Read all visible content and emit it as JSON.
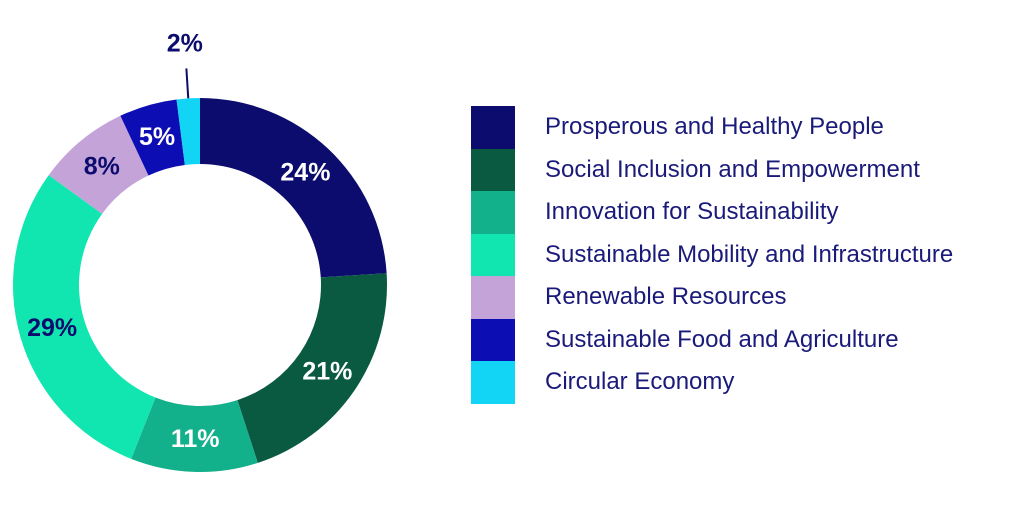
{
  "chart_data": {
    "type": "pie",
    "donut": true,
    "categories": [
      "Prosperous and Healthy People",
      "Social Inclusion and Empowerment",
      "Innovation for Sustainability",
      "Sustainable Mobility and Infrastructure",
      "Renewable Resources",
      "Sustainable Food and Agriculture",
      "Circular Economy"
    ],
    "values": [
      24,
      21,
      11,
      29,
      8,
      5,
      2
    ],
    "value_labels": [
      "24%",
      "21%",
      "11%",
      "29%",
      "8%",
      "5%",
      "2%"
    ],
    "colors": [
      "#0c0c6e",
      "#0a5a42",
      "#13b08c",
      "#12e6b0",
      "#c3a3d8",
      "#0d0db4",
      "#12d5f5"
    ],
    "label_colors": [
      "#ffffff",
      "#ffffff",
      "#ffffff",
      "#0c0c6e",
      "#0c0c6e",
      "#ffffff",
      "#0c0c6e"
    ],
    "legend_position": "right"
  }
}
